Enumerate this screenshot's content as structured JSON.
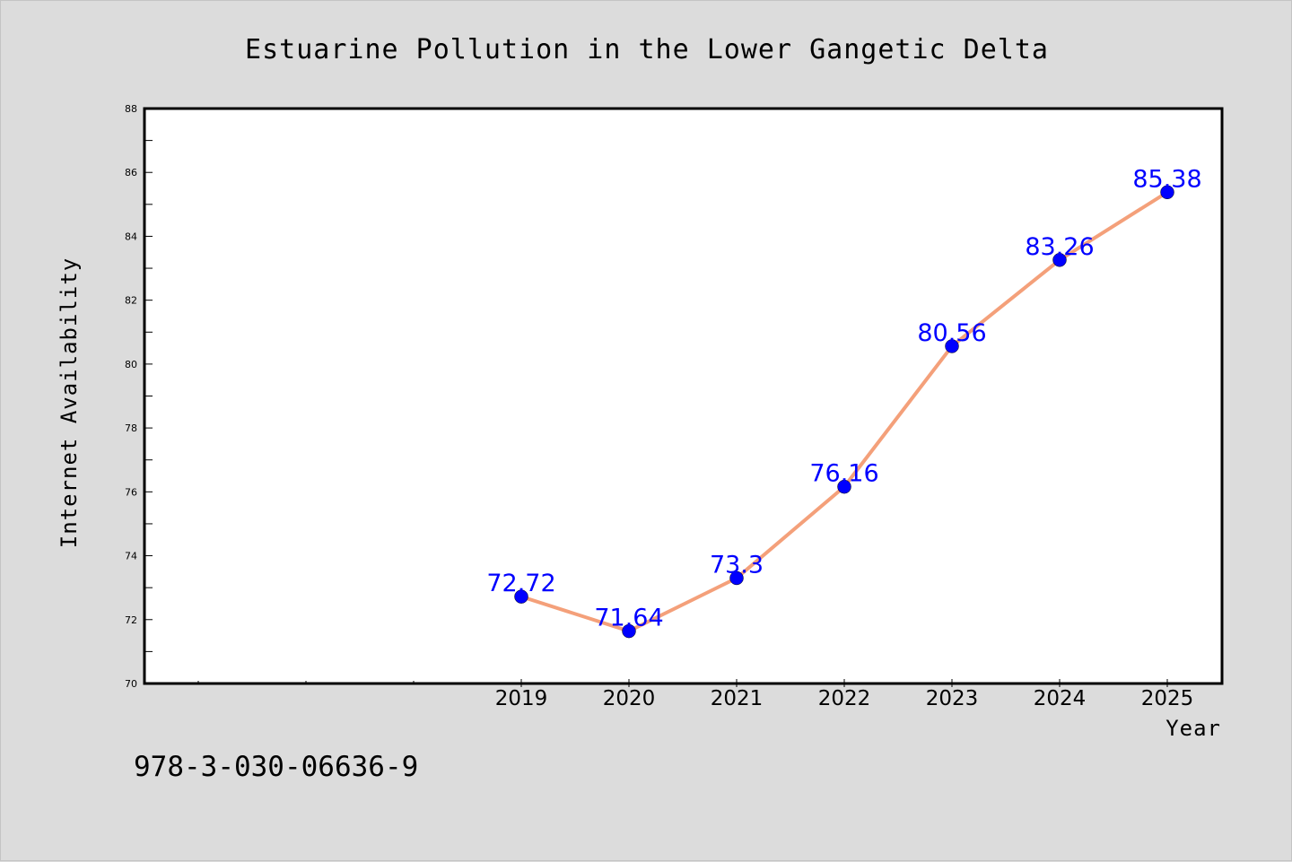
{
  "chart_data": {
    "type": "line",
    "title": "Estuarine Pollution in the Lower Gangetic Delta",
    "xlabel": "Year",
    "ylabel": "Internet Availability",
    "ylim": [
      70,
      88
    ],
    "y_ticks": [
      70,
      72,
      74,
      76,
      78,
      80,
      82,
      84,
      86,
      88
    ],
    "x": [
      "2019",
      "2020",
      "2021",
      "2022",
      "2023",
      "2024",
      "2025"
    ],
    "series": [
      {
        "values": [
          72.72,
          71.64,
          73.3,
          76.16,
          80.56,
          83.26,
          85.38
        ],
        "data_labels": [
          "72.72",
          "71.64",
          "73.3",
          "76.16",
          "80.56",
          "83.26",
          "85.38"
        ],
        "line_color": "#f4a07a",
        "marker_color": "#0000ff",
        "label_color": "#0000ff"
      }
    ],
    "grid": false,
    "annotation": "978-3-030-06636-9"
  },
  "colors": {
    "background": "#dcdcdc",
    "plot_background": "#ffffff",
    "line": "#f4a07a",
    "marker": "#0000ff"
  }
}
